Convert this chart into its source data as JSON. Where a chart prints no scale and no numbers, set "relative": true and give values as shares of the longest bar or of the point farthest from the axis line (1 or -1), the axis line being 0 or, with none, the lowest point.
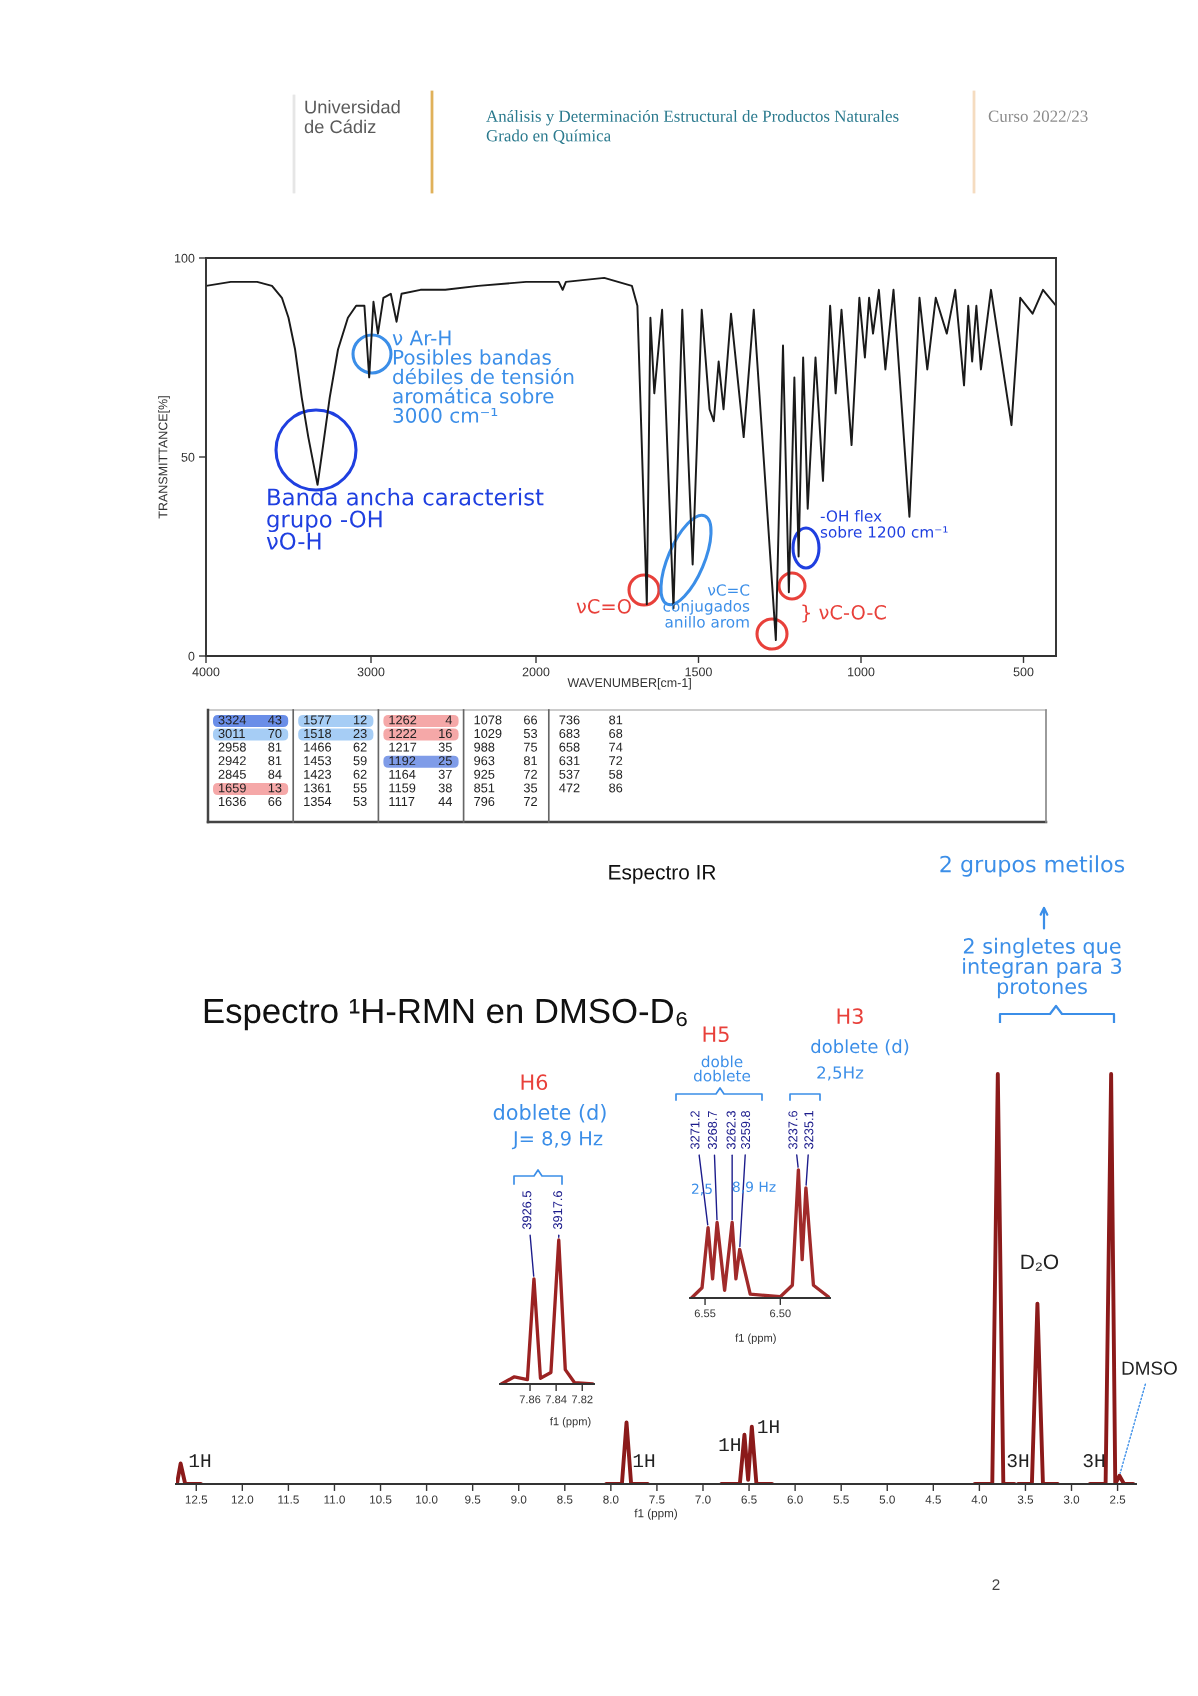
{
  "chart_data": [
    {
      "type": "other",
      "annotations": [
        "Universidad\nde Cádiz",
        "Análisis y Determinación Estructural de Productos Naturales\nGrado en Química",
        "Curso 2022/23",
        "2"
      ]
    },
    {
      "type": "line",
      "ylabel": "TRANSMITTANCE[%]",
      "xlim": [
        4000,
        2000
      ],
      "xticks": [
        4000,
        3000,
        2000
      ],
      "ylim": [
        0,
        100
      ],
      "yticks": [
        0,
        50,
        100
      ],
      "series": [
        {
          "color": "#1a1a1a",
          "x": [
            4000,
            3850,
            3690,
            3600,
            3540,
            3500,
            3460,
            3420,
            3380,
            3324,
            3290,
            3250,
            3200,
            3140,
            3090,
            3040,
            3011,
            2985,
            2958,
            2925,
            2880,
            2845,
            2815,
            2700,
            2550,
            2350,
            2060,
            2000
          ],
          "values": [
            93,
            94,
            94,
            93,
            90,
            85,
            77,
            65,
            55,
            43,
            53,
            65,
            77,
            85,
            88,
            88,
            70,
            89,
            81,
            90,
            91,
            84,
            91,
            92,
            92,
            93,
            94,
            94
          ]
        }
      ],
      "annotations": [
        "ν Ar-H\nPosibles bandas\ndébiles de tensión\naromática sobre\n3000 cm⁻¹",
        "Banda ancha caracterist\ngrupo -OH\nνO-H",
        "Espectro IR"
      ]
    },
    {
      "type": "line",
      "xlabel": "WAVENUMBER[cm-1]",
      "xlim": [
        2000,
        400
      ],
      "xticks": [
        1500,
        1000,
        500
      ],
      "ylim": [
        0,
        100
      ],
      "tick_labels": "x",
      "series": [
        {
          "color": "#1a1a1a",
          "x": [
            2000,
            1930,
            1918,
            1908,
            1790,
            1705,
            1688,
            1659,
            1648,
            1636,
            1612,
            1577,
            1550,
            1518,
            1490,
            1466,
            1453,
            1438,
            1423,
            1400,
            1361,
            1330,
            1262,
            1240,
            1222,
            1205,
            1192,
            1178,
            1164,
            1140,
            1117,
            1095,
            1078,
            1060,
            1029,
            1005,
            988,
            975,
            963,
            945,
            925,
            900,
            851,
            820,
            796,
            770,
            736,
            710,
            683,
            670,
            658,
            645,
            631,
            600,
            537,
            510,
            472,
            440,
            400
          ],
          "values": [
            94,
            94,
            92,
            94,
            95,
            93,
            88,
            13,
            85,
            66,
            87,
            12,
            87,
            23,
            87,
            62,
            59,
            74,
            62,
            86,
            55,
            87,
            4,
            78,
            16,
            70,
            25,
            75,
            37,
            75,
            44,
            88,
            66,
            87,
            53,
            90,
            75,
            90,
            81,
            92,
            72,
            92,
            35,
            90,
            72,
            90,
            81,
            92,
            68,
            88,
            74,
            88,
            72,
            92,
            58,
            90,
            86,
            92,
            88
          ]
        }
      ],
      "annotations": [
        "νC=O",
        "νC=C\nconjugados\nanillo arom",
        "} νC-O-C",
        "-OH flex\nsobre 1200 cm⁻¹"
      ]
    },
    {
      "type": "other",
      "annotations": [
        "3324 43",
        "3011 70",
        "2958 81",
        "2942 81",
        "2845 84",
        "1659 13",
        "1636 66",
        "1577 12",
        "1518 23",
        "1466 62",
        "1453 59",
        "1423 62",
        "1361 55",
        "1354 53",
        "1262 4",
        "1222 16",
        "1217 35",
        "1192 25",
        "1164 37",
        "1159 38",
        "1117 44",
        "1078 66",
        "1029 53",
        "988 75",
        "963 81",
        "925 72",
        "851 35",
        "796 72",
        "736 81",
        "683 68",
        "658 74",
        "631 72",
        "537 58",
        "472 86"
      ],
      "colors": [
        "#6a8ee8",
        "#a6cdf5",
        null,
        null,
        null,
        "#f5a8a8",
        null,
        "#a6cdf5",
        "#a6cdf5",
        null,
        null,
        null,
        null,
        null,
        "#f5a8a8",
        "#f5a8a8",
        null,
        "#7f9ce8",
        null,
        null,
        null,
        null,
        null,
        null,
        null,
        null,
        null,
        null,
        null,
        null,
        null,
        null,
        null,
        null
      ]
    },
    {
      "type": "line",
      "relative": true,
      "title": "Espectro ¹H-RMN en DMSO-D₆",
      "xlabel": "f1 (ppm)",
      "xlim": [
        12.72,
        2.3
      ],
      "xticks": [
        12.5,
        {
          "value": 12,
          "label": "12.0"
        },
        11.5,
        {
          "value": 11,
          "label": "11.0"
        },
        10.5,
        {
          "value": 10,
          "label": "10.0"
        },
        9.5,
        {
          "value": 9,
          "label": "9.0"
        },
        8.5,
        {
          "value": 8,
          "label": "8.0"
        },
        7.5,
        {
          "value": 7,
          "label": "7.0"
        },
        6.5,
        {
          "value": 6,
          "label": "6.0"
        },
        5.5,
        {
          "value": 5,
          "label": "5.0"
        },
        4.5,
        {
          "value": 4,
          "label": "4.0"
        },
        3.5,
        {
          "value": 3,
          "label": "3.0"
        },
        2.5
      ],
      "series": [
        {
          "color": "#8b1a1a",
          "x": [
            12.71,
            12.67,
            12.62,
            12.45,
            10.0,
            8.05,
            7.88,
            7.83,
            7.78,
            7.6,
            7.0,
            6.8,
            6.6,
            6.55,
            6.51,
            6.47,
            6.42,
            6.25,
            5.0,
            4.05,
            3.86,
            3.8,
            3.74,
            3.62,
            3.6,
            3.58,
            3.43,
            3.37,
            3.31,
            3.15,
            3.0,
            2.8,
            2.63,
            2.57,
            2.525,
            2.48,
            2.43,
            2.33
          ],
          "values": [
            0,
            0.05,
            0,
            0,
            null,
            0,
            0,
            0.15,
            0,
            0,
            null,
            0,
            0,
            0.12,
            0.01,
            0.14,
            0,
            0,
            null,
            0,
            0,
            1.0,
            0,
            0,
            null,
            0,
            0,
            0.44,
            0,
            0,
            null,
            0,
            0,
            1.0,
            0,
            0.02,
            0,
            0
          ]
        }
      ],
      "annotations": [
        "1H",
        "1H",
        {
          "text": "1H",
          "x": 6.55,
          "y": 0.12
        },
        {
          "text": "1H",
          "x": 6.47,
          "y": 0.14
        },
        "3H",
        {
          "text": "D₂O",
          "x": 3.37,
          "y": 0.44
        },
        "3H",
        {
          "text": "DMSO",
          "x": 2.48,
          "y": 0.02
        },
        "2 grupos metilos",
        "2 singletes que\nintegran para 3\nprotones"
      ]
    },
    {
      "type": "line",
      "relative": true,
      "xlabel": "f1 (ppm)",
      "xlim": [
        7.883,
        7.811
      ],
      "xticks": [
        7.86,
        7.84,
        7.82
      ],
      "series": [
        {
          "color": "#9b2222",
          "x": [
            7.882,
            7.872,
            7.862,
            7.857,
            7.852,
            7.844,
            7.838,
            7.833,
            7.826,
            7.812
          ],
          "values": [
            0,
            0.05,
            0.03,
            0.73,
            0.04,
            0.08,
            1.0,
            0.1,
            0.01,
            0
          ]
        }
      ],
      "annotations": [
        {
          "text": "3926.5",
          "x": 7.857,
          "y": 0.73
        },
        {
          "text": "3917.6",
          "x": 7.838,
          "y": 1.0
        },
        "H6",
        "doblete (d)",
        "J= 8,9 Hz"
      ]
    },
    {
      "type": "line",
      "relative": true,
      "xlabel": "f1 (ppm)",
      "xlim": [
        6.56,
        6.467
      ],
      "xticks": [
        6.55,
        {
          "value": 6.5,
          "label": "6.50"
        }
      ],
      "series": [
        {
          "color": "#a12a2a",
          "x": [
            6.559,
            6.552,
            6.548,
            6.545,
            6.542,
            6.537,
            6.532,
            6.5295,
            6.527,
            6.52,
            6.5,
            6.492,
            6.488,
            6.4855,
            6.483,
            6.478,
            6.467
          ],
          "values": [
            0,
            0.08,
            0.55,
            0.15,
            0.59,
            0.06,
            0.59,
            0.15,
            0.38,
            0.03,
            0.01,
            0.1,
            1.0,
            0.3,
            0.86,
            0.1,
            0
          ]
        }
      ],
      "annotations": [
        {
          "text": "3271.2",
          "x": 6.548,
          "y": 0.55
        },
        {
          "text": "3268.7",
          "x": 6.542,
          "y": 0.59
        },
        {
          "text": "3262.3",
          "x": 6.532,
          "y": 0.59
        },
        {
          "text": "3259.8",
          "x": 6.527,
          "y": 0.38
        },
        {
          "text": "3237.6",
          "x": 6.488,
          "y": 1.0
        },
        {
          "text": "3235.1",
          "x": 6.483,
          "y": 0.86
        },
        "H5",
        "doble\ndoblete",
        "2,5",
        "8,9 Hz",
        "H3",
        "doblete (d)",
        "2,5Hz"
      ]
    }
  ]
}
